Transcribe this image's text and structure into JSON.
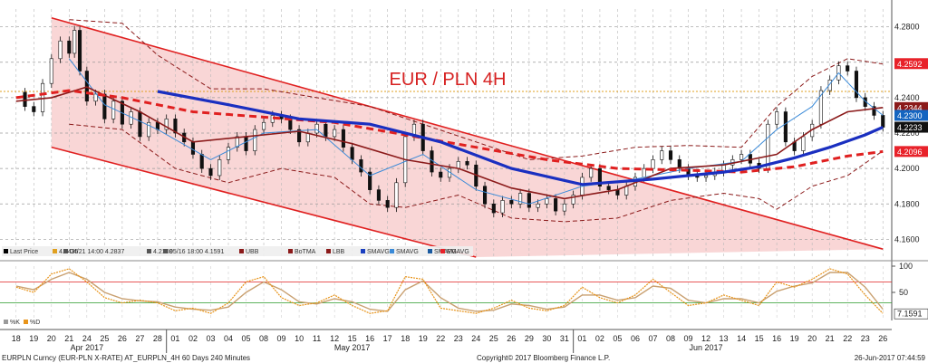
{
  "chart_data": {
    "type": "candlestick",
    "title": "EUR / PLN 4H",
    "security": "EURPLN Curncy (EUR-PLN X-RATE) AT_EURPLN_4H 60 Days 240 Minutes",
    "copyright": "Copyright© 2017 Bloomberg Finance L.P.",
    "timestamp": "26-Jun-2017 07:44:59",
    "ylim": [
      4.15,
      4.29
    ],
    "y_ticks": [
      "4.2800",
      "4.2600",
      "4.2400",
      "4.2200",
      "4.2000",
      "4.1800",
      "4.1600"
    ],
    "price_labels": [
      {
        "text": "4.2592",
        "value": 4.2592,
        "color": "#e8222a"
      },
      {
        "text": "4.2344",
        "value": 4.2344,
        "color": "#8b1a1a"
      },
      {
        "text": "4.2300",
        "value": 4.23,
        "color": "#1565c0"
      },
      {
        "text": "4.2233",
        "value": 4.2233,
        "color": "#111111"
      },
      {
        "text": "4.2096",
        "value": 4.2096,
        "color": "#e8222a"
      }
    ],
    "legend": [
      {
        "text": "Last Price",
        "color": "#000000"
      },
      {
        "text": "4.2435",
        "color": "#e0a020"
      },
      {
        "text": "04/21 14:00 4.2837",
        "color": "#555555"
      },
      {
        "text": "4.2108",
        "color": "#555555"
      },
      {
        "text": "05/16 18:00 4.1591",
        "color": "#555555"
      },
      {
        "text": "UBB",
        "color": "#8b1a1a"
      },
      {
        "text": "BoTMA",
        "color": "#8b1a1a"
      },
      {
        "text": "LBB",
        "color": "#8b1a1a"
      },
      {
        "text": "SMAVG",
        "color": "#1a3fc0"
      },
      {
        "text": "SMAVG",
        "color": "#3a8ad8"
      },
      {
        "text": "SMAVG",
        "color": "#1a5aa0"
      },
      {
        "text": "EMAVG",
        "color": "#e8222a"
      }
    ],
    "indicator": {
      "ylim": [
        0,
        100
      ],
      "y_ticks": [
        "100",
        "50"
      ],
      "last_label": "7.1591",
      "legend": [
        "%K",
        "%D"
      ],
      "upper_level": 70,
      "lower_level": 30
    },
    "x_day_labels": [
      "18",
      "19",
      "20",
      "21",
      "24",
      "25",
      "26",
      "27",
      "28",
      "01",
      "02",
      "03",
      "04",
      "05",
      "08",
      "09",
      "10",
      "11",
      "12",
      "15",
      "16",
      "17",
      "18",
      "19",
      "22",
      "23",
      "24",
      "25",
      "26",
      "29",
      "30",
      "31",
      "01",
      "02",
      "05",
      "06",
      "07",
      "08",
      "09",
      "12",
      "13",
      "14",
      "15",
      "16",
      "19",
      "20",
      "21",
      "22",
      "23",
      "26"
    ],
    "x_month_labels": [
      {
        "text": "Apr 2017",
        "index": 4
      },
      {
        "text": "May 2017",
        "index": 19
      },
      {
        "text": "Jun 2017",
        "index": 39
      }
    ],
    "horizontal_level": 4.2435,
    "channel": {
      "upper_start": [
        2,
        4.285
      ],
      "upper_end": [
        49,
        4.1545
      ],
      "lower_start": [
        2,
        4.212
      ],
      "lower_end": [
        26,
        4.15
      ]
    },
    "close_path": [
      [
        0,
        4.243
      ],
      [
        0.5,
        4.235
      ],
      [
        1,
        4.232
      ],
      [
        1.5,
        4.248
      ],
      [
        2,
        4.262
      ],
      [
        2.5,
        4.272
      ],
      [
        3,
        4.265
      ],
      [
        3.3,
        4.278
      ],
      [
        3.6,
        4.255
      ],
      [
        4,
        4.238
      ],
      [
        4.5,
        4.242
      ],
      [
        5,
        4.228
      ],
      [
        5.5,
        4.238
      ],
      [
        6,
        4.225
      ],
      [
        6.5,
        4.232
      ],
      [
        7,
        4.218
      ],
      [
        7.5,
        4.226
      ],
      [
        8,
        4.222
      ],
      [
        8.5,
        4.228
      ],
      [
        9,
        4.22
      ],
      [
        9.5,
        4.215
      ],
      [
        10,
        4.208
      ],
      [
        10.5,
        4.2
      ],
      [
        11,
        4.196
      ],
      [
        11.5,
        4.205
      ],
      [
        12,
        4.212
      ],
      [
        12.5,
        4.218
      ],
      [
        13,
        4.21
      ],
      [
        13.5,
        4.222
      ],
      [
        14,
        4.226
      ],
      [
        14.5,
        4.23
      ],
      [
        15,
        4.228
      ],
      [
        15.5,
        4.222
      ],
      [
        16,
        4.215
      ],
      [
        16.5,
        4.22
      ],
      [
        17,
        4.225
      ],
      [
        17.5,
        4.218
      ],
      [
        18,
        4.222
      ],
      [
        18.5,
        4.212
      ],
      [
        19,
        4.205
      ],
      [
        19.5,
        4.198
      ],
      [
        20,
        4.188
      ],
      [
        20.5,
        4.182
      ],
      [
        21,
        4.178
      ],
      [
        21.5,
        4.192
      ],
      [
        22,
        4.218
      ],
      [
        22.5,
        4.225
      ],
      [
        23,
        4.21
      ],
      [
        23.5,
        4.198
      ],
      [
        24,
        4.195
      ],
      [
        24.5,
        4.2
      ],
      [
        25,
        4.204
      ],
      [
        25.5,
        4.202
      ],
      [
        26,
        4.19
      ],
      [
        26.5,
        4.18
      ],
      [
        27,
        4.175
      ],
      [
        27.5,
        4.182
      ],
      [
        28,
        4.18
      ],
      [
        28.5,
        4.186
      ],
      [
        29,
        4.178
      ],
      [
        29.5,
        4.18
      ],
      [
        30,
        4.183
      ],
      [
        30.5,
        4.176
      ],
      [
        31,
        4.18
      ],
      [
        31.5,
        4.185
      ],
      [
        32,
        4.195
      ],
      [
        32.5,
        4.2
      ],
      [
        33,
        4.19
      ],
      [
        33.5,
        4.188
      ],
      [
        34,
        4.185
      ],
      [
        34.5,
        4.19
      ],
      [
        35,
        4.195
      ],
      [
        35.5,
        4.2
      ],
      [
        36,
        4.205
      ],
      [
        36.5,
        4.21
      ],
      [
        37,
        4.205
      ],
      [
        37.5,
        4.2
      ],
      [
        38,
        4.196
      ],
      [
        38.5,
        4.195
      ],
      [
        39,
        4.196
      ],
      [
        39.5,
        4.198
      ],
      [
        40,
        4.202
      ],
      [
        40.5,
        4.205
      ],
      [
        41,
        4.208
      ],
      [
        41.5,
        4.203
      ],
      [
        42,
        4.2
      ],
      [
        42.5,
        4.225
      ],
      [
        43,
        4.232
      ],
      [
        43.5,
        4.215
      ],
      [
        44,
        4.21
      ],
      [
        44.5,
        4.218
      ],
      [
        45,
        4.225
      ],
      [
        45.5,
        4.244
      ],
      [
        46,
        4.25
      ],
      [
        46.5,
        4.258
      ],
      [
        47,
        4.255
      ],
      [
        47.5,
        4.24
      ],
      [
        48,
        4.235
      ],
      [
        48.5,
        4.23
      ],
      [
        49,
        4.2233
      ]
    ],
    "sma_thick": [
      [
        8,
        4.2435
      ],
      [
        12,
        4.236
      ],
      [
        16,
        4.228
      ],
      [
        20,
        4.225
      ],
      [
        24,
        4.215
      ],
      [
        28,
        4.2
      ],
      [
        32,
        4.191
      ],
      [
        36,
        4.194
      ],
      [
        40,
        4.198
      ],
      [
        42,
        4.201
      ],
      [
        44,
        4.206
      ],
      [
        46,
        4.212
      ],
      [
        48,
        4.219
      ],
      [
        49,
        4.2233
      ]
    ],
    "sma_fast": [
      [
        3,
        4.262
      ],
      [
        5,
        4.236
      ],
      [
        8,
        4.222
      ],
      [
        11,
        4.205
      ],
      [
        14,
        4.22
      ],
      [
        17,
        4.222
      ],
      [
        20,
        4.196
      ],
      [
        23,
        4.208
      ],
      [
        26,
        4.188
      ],
      [
        29,
        4.18
      ],
      [
        32,
        4.19
      ],
      [
        35,
        4.194
      ],
      [
        38,
        4.2
      ],
      [
        41,
        4.204
      ],
      [
        43,
        4.222
      ],
      [
        45,
        4.235
      ],
      [
        46.5,
        4.254
      ],
      [
        48,
        4.238
      ],
      [
        49,
        4.23
      ]
    ],
    "bb_mid": [
      [
        0,
        4.238
      ],
      [
        2,
        4.24
      ],
      [
        4,
        4.246
      ],
      [
        7,
        4.232
      ],
      [
        10,
        4.215
      ],
      [
        13,
        4.218
      ],
      [
        16,
        4.221
      ],
      [
        19,
        4.214
      ],
      [
        22,
        4.205
      ],
      [
        25,
        4.2
      ],
      [
        28,
        4.189
      ],
      [
        31,
        4.183
      ],
      [
        34,
        4.188
      ],
      [
        37,
        4.2
      ],
      [
        40,
        4.202
      ],
      [
        43,
        4.208
      ],
      [
        45,
        4.222
      ],
      [
        47,
        4.232
      ],
      [
        49,
        4.2344
      ]
    ],
    "bb_upper": [
      [
        3,
        4.284
      ],
      [
        6,
        4.282
      ],
      [
        8,
        4.264
      ],
      [
        11,
        4.245
      ],
      [
        14,
        4.245
      ],
      [
        17,
        4.24
      ],
      [
        20,
        4.235
      ],
      [
        23,
        4.225
      ],
      [
        26,
        4.215
      ],
      [
        29,
        4.205
      ],
      [
        32,
        4.207
      ],
      [
        35,
        4.212
      ],
      [
        38,
        4.213
      ],
      [
        41,
        4.212
      ],
      [
        43,
        4.235
      ],
      [
        45,
        4.252
      ],
      [
        47,
        4.262
      ],
      [
        49,
        4.259
      ]
    ],
    "bb_lower": [
      [
        3,
        4.225
      ],
      [
        6,
        4.222
      ],
      [
        9,
        4.2
      ],
      [
        12,
        4.192
      ],
      [
        15,
        4.2
      ],
      [
        18,
        4.195
      ],
      [
        20,
        4.18
      ],
      [
        22,
        4.178
      ],
      [
        25,
        4.185
      ],
      [
        28,
        4.172
      ],
      [
        31,
        4.17
      ],
      [
        34,
        4.172
      ],
      [
        37,
        4.182
      ],
      [
        40,
        4.186
      ],
      [
        42,
        4.183
      ],
      [
        43,
        4.177
      ],
      [
        45,
        4.19
      ],
      [
        47,
        4.196
      ],
      [
        49,
        4.21
      ]
    ],
    "ema_dashed": [
      [
        0,
        4.24
      ],
      [
        3,
        4.244
      ],
      [
        6,
        4.24
      ],
      [
        10,
        4.232
      ],
      [
        14,
        4.229
      ],
      [
        18,
        4.226
      ],
      [
        22,
        4.219
      ],
      [
        26,
        4.212
      ],
      [
        30,
        4.205
      ],
      [
        34,
        4.2
      ],
      [
        38,
        4.199
      ],
      [
        41,
        4.198
      ],
      [
        44,
        4.201
      ],
      [
        47,
        4.207
      ],
      [
        49,
        4.2096
      ]
    ],
    "stoch_k": [
      [
        0,
        60
      ],
      [
        1,
        50
      ],
      [
        2,
        85
      ],
      [
        3,
        95
      ],
      [
        4,
        70
      ],
      [
        5,
        40
      ],
      [
        6,
        30
      ],
      [
        7,
        35
      ],
      [
        8,
        30
      ],
      [
        9,
        15
      ],
      [
        10,
        20
      ],
      [
        11,
        10
      ],
      [
        12,
        30
      ],
      [
        13,
        70
      ],
      [
        14,
        80
      ],
      [
        15,
        40
      ],
      [
        16,
        25
      ],
      [
        17,
        30
      ],
      [
        18,
        45
      ],
      [
        19,
        25
      ],
      [
        20,
        10
      ],
      [
        21,
        15
      ],
      [
        22,
        80
      ],
      [
        23,
        75
      ],
      [
        24,
        20
      ],
      [
        25,
        15
      ],
      [
        26,
        10
      ],
      [
        27,
        20
      ],
      [
        28,
        35
      ],
      [
        29,
        20
      ],
      [
        30,
        15
      ],
      [
        31,
        25
      ],
      [
        32,
        60
      ],
      [
        33,
        40
      ],
      [
        34,
        30
      ],
      [
        35,
        45
      ],
      [
        36,
        75
      ],
      [
        37,
        50
      ],
      [
        38,
        25
      ],
      [
        39,
        30
      ],
      [
        40,
        45
      ],
      [
        41,
        35
      ],
      [
        42,
        25
      ],
      [
        43,
        70
      ],
      [
        44,
        60
      ],
      [
        45,
        75
      ],
      [
        46,
        95
      ],
      [
        47,
        85
      ],
      [
        48,
        45
      ],
      [
        49,
        10
      ]
    ],
    "stoch_d": [
      [
        0,
        62
      ],
      [
        1,
        55
      ],
      [
        2,
        75
      ],
      [
        3,
        88
      ],
      [
        4,
        75
      ],
      [
        5,
        50
      ],
      [
        6,
        38
      ],
      [
        7,
        34
      ],
      [
        8,
        32
      ],
      [
        9,
        22
      ],
      [
        10,
        18
      ],
      [
        11,
        16
      ],
      [
        12,
        22
      ],
      [
        13,
        50
      ],
      [
        14,
        70
      ],
      [
        15,
        55
      ],
      [
        16,
        32
      ],
      [
        17,
        28
      ],
      [
        18,
        38
      ],
      [
        19,
        32
      ],
      [
        20,
        18
      ],
      [
        21,
        14
      ],
      [
        22,
        55
      ],
      [
        23,
        72
      ],
      [
        24,
        40
      ],
      [
        25,
        20
      ],
      [
        26,
        14
      ],
      [
        27,
        16
      ],
      [
        28,
        28
      ],
      [
        29,
        25
      ],
      [
        30,
        18
      ],
      [
        31,
        22
      ],
      [
        32,
        45
      ],
      [
        33,
        45
      ],
      [
        34,
        35
      ],
      [
        35,
        40
      ],
      [
        36,
        62
      ],
      [
        37,
        58
      ],
      [
        38,
        35
      ],
      [
        39,
        30
      ],
      [
        40,
        38
      ],
      [
        41,
        38
      ],
      [
        42,
        30
      ],
      [
        43,
        52
      ],
      [
        44,
        62
      ],
      [
        45,
        68
      ],
      [
        46,
        88
      ],
      [
        47,
        88
      ],
      [
        48,
        60
      ],
      [
        49,
        18
      ]
    ]
  }
}
